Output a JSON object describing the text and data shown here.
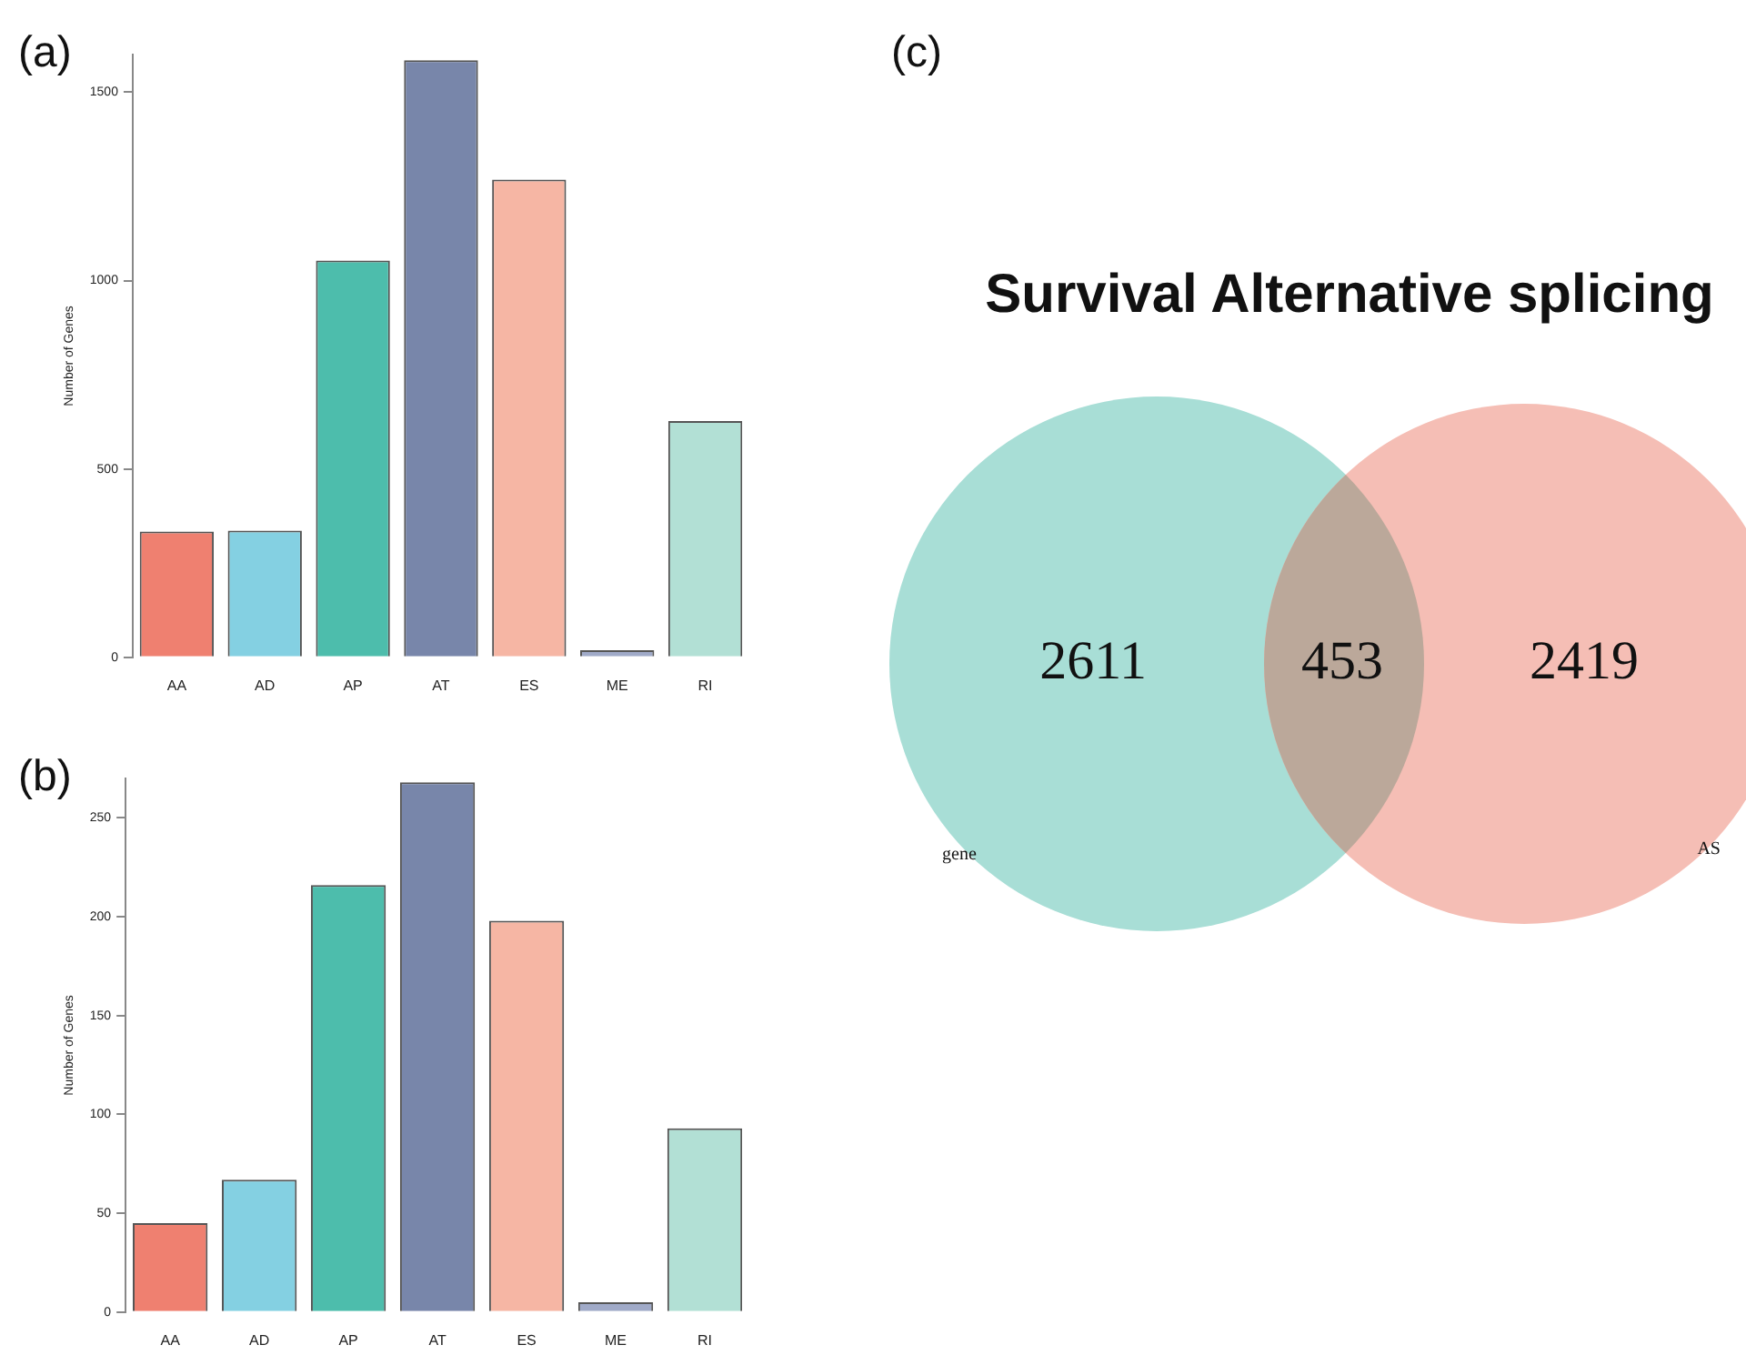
{
  "chart_data": [
    {
      "type": "bar",
      "categories": [
        "AA",
        "AD",
        "AP",
        "AT",
        "ES",
        "ME",
        "RI"
      ],
      "values": [
        334,
        336,
        1053,
        1585,
        1268,
        19,
        627
      ],
      "colors": [
        "#ef8070",
        "#84d0e2",
        "#4dbdac",
        "#7886aa",
        "#f6b6a4",
        "#a0aac8",
        "#b2e0d5"
      ],
      "ylabel": "Number of Genes",
      "ylim": [
        0,
        1600
      ],
      "yticks": [
        0,
        500,
        1000,
        1500
      ],
      "annotations": [
        "(a)"
      ]
    },
    {
      "type": "bar",
      "categories": [
        "AA",
        "AD",
        "AP",
        "AT",
        "ES",
        "ME",
        "RI"
      ],
      "values": [
        45,
        67,
        216,
        268,
        198,
        5,
        93
      ],
      "colors": [
        "#ef8070",
        "#84d0e2",
        "#4dbdac",
        "#7886aa",
        "#f6b6a4",
        "#a0aac8",
        "#b2e0d5"
      ],
      "ylabel": "Number of Genes",
      "ylim": [
        0,
        270
      ],
      "yticks": [
        0,
        50,
        100,
        150,
        200,
        250
      ],
      "annotations": [
        "(b)"
      ]
    },
    {
      "type": "other",
      "title": "Survival Alternative splicing",
      "categories": [
        "gene",
        null,
        "AS"
      ],
      "values": [
        2611,
        453,
        2419
      ],
      "colors": [
        "#a8ded6",
        "#bba89a",
        "#f5beb5"
      ],
      "data_labels": true,
      "annotations": [
        "(c)"
      ]
    }
  ]
}
